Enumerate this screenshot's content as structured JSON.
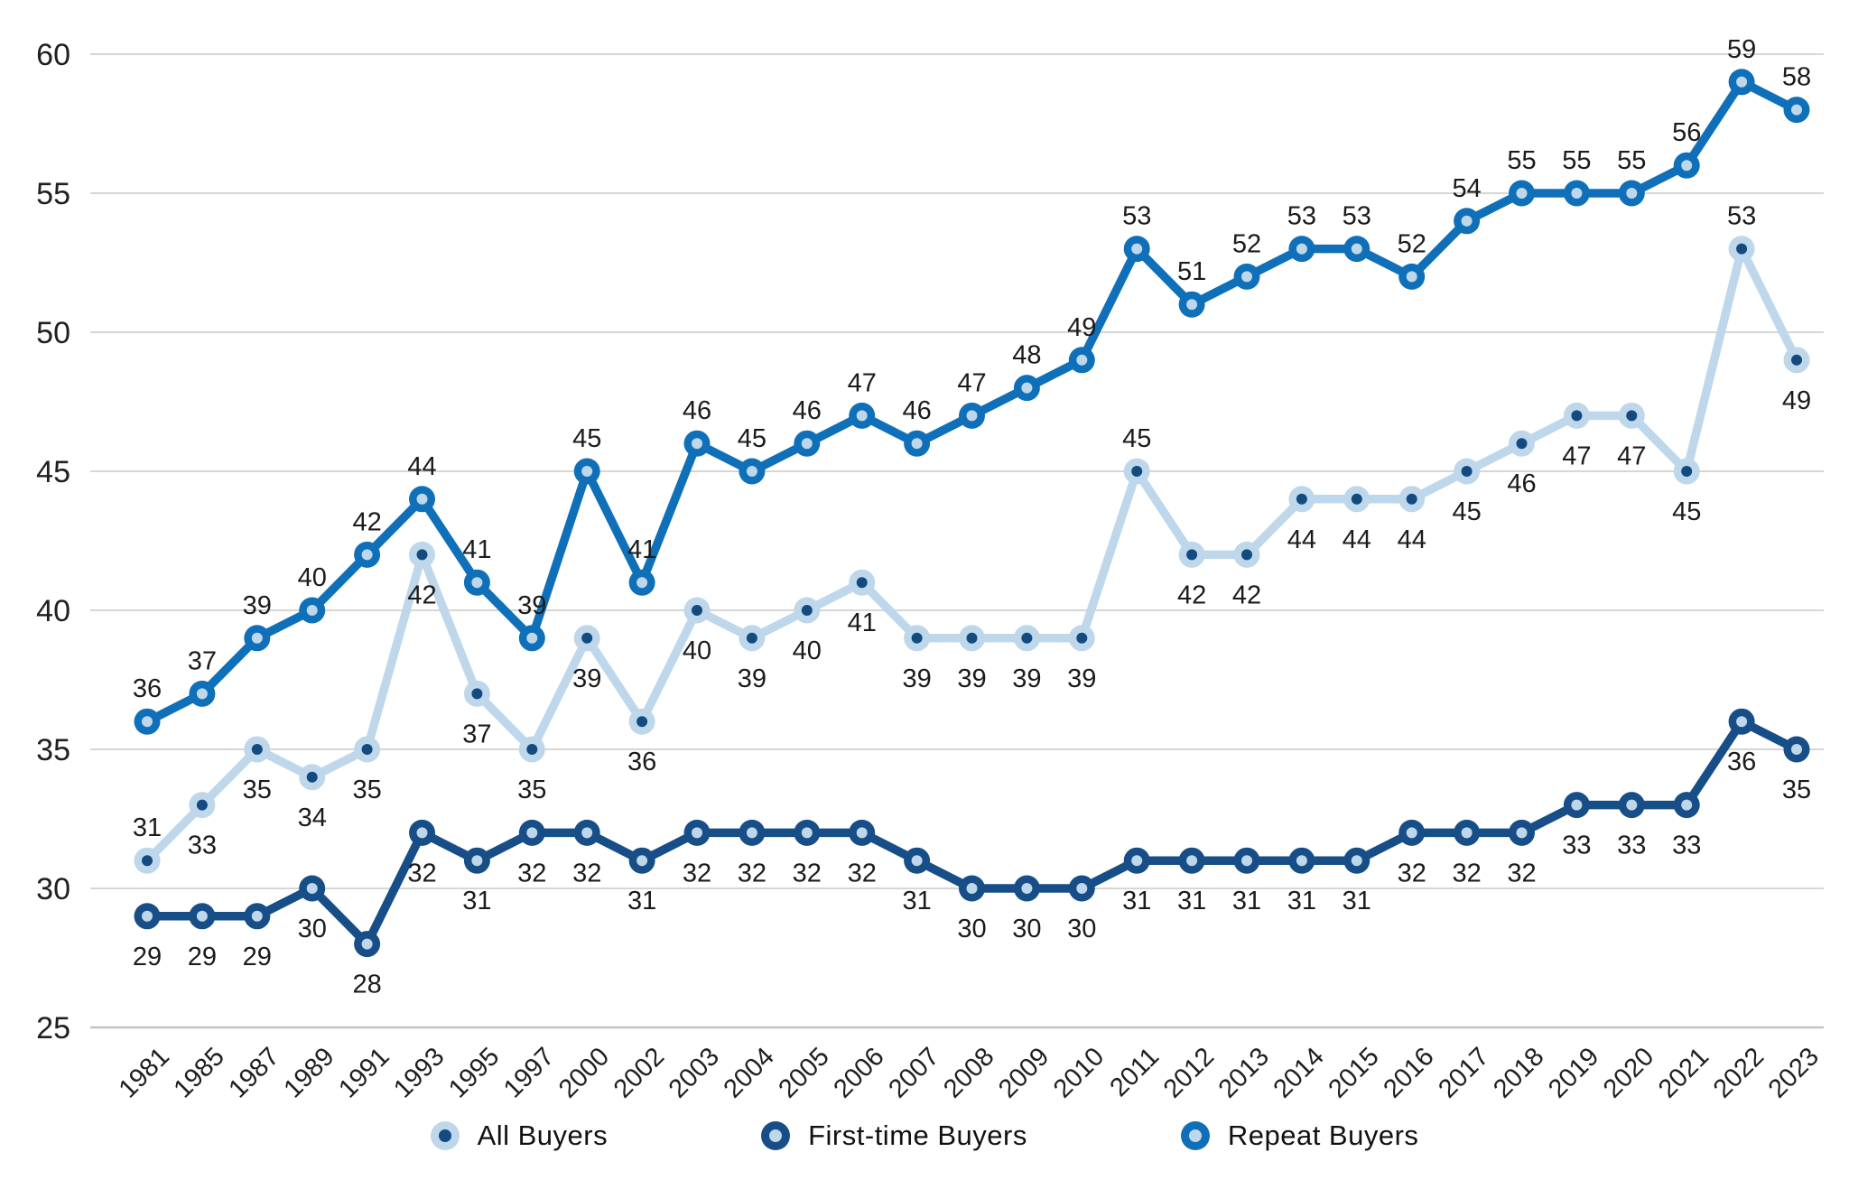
{
  "chart_data": {
    "type": "line",
    "title": "",
    "xlabel": "",
    "ylabel": "",
    "x_labels": [
      "1981",
      "1985",
      "1987",
      "1989",
      "1991",
      "1993",
      "1995",
      "1997",
      "2000",
      "2002",
      "2003",
      "2004",
      "2005",
      "2006",
      "2007",
      "2008",
      "2009",
      "2010",
      "2011",
      "2012",
      "2013",
      "2014",
      "2015",
      "2016",
      "2017",
      "2018",
      "2019",
      "2020",
      "2021",
      "2022",
      "2023"
    ],
    "ylim": [
      25,
      60
    ],
    "yticks": [
      25,
      30,
      35,
      40,
      45,
      50,
      55,
      60
    ],
    "grid": "horizontal",
    "legend_position": "bottom-center",
    "grid_color": "#d6d6d6",
    "axis_line_color": "#c3c3c3",
    "axis_text_color": "#1f1f1f",
    "label_color": "#1b1b1b",
    "series": [
      {
        "name": "All Buyers",
        "line_color": "#bed7eb",
        "dot_color": "#134b80",
        "labels": "below",
        "labels_above_indices": [
          0,
          18,
          29
        ],
        "values": [
          31,
          33,
          35,
          34,
          35,
          42,
          37,
          35,
          39,
          36,
          40,
          39,
          40,
          41,
          39,
          39,
          39,
          39,
          45,
          42,
          42,
          44,
          44,
          44,
          45,
          46,
          47,
          47,
          45,
          53,
          49
        ]
      },
      {
        "name": "First-time Buyers",
        "line_color": "#174e87",
        "dot_color": "#bed7eb",
        "labels": "below",
        "labels_above_indices": [],
        "values": [
          29,
          29,
          29,
          30,
          28,
          32,
          31,
          32,
          32,
          31,
          32,
          32,
          32,
          32,
          31,
          30,
          30,
          30,
          31,
          31,
          31,
          31,
          31,
          32,
          32,
          32,
          33,
          33,
          33,
          36,
          35
        ]
      },
      {
        "name": "Repeat Buyers",
        "line_color": "#0f70b9",
        "dot_color": "#bed7eb",
        "labels": "above",
        "labels_above_indices": [],
        "values": [
          36,
          37,
          39,
          40,
          42,
          44,
          41,
          39,
          45,
          41,
          46,
          45,
          46,
          47,
          46,
          47,
          48,
          49,
          53,
          51,
          52,
          53,
          53,
          52,
          54,
          55,
          55,
          55,
          56,
          59,
          58
        ]
      }
    ]
  }
}
